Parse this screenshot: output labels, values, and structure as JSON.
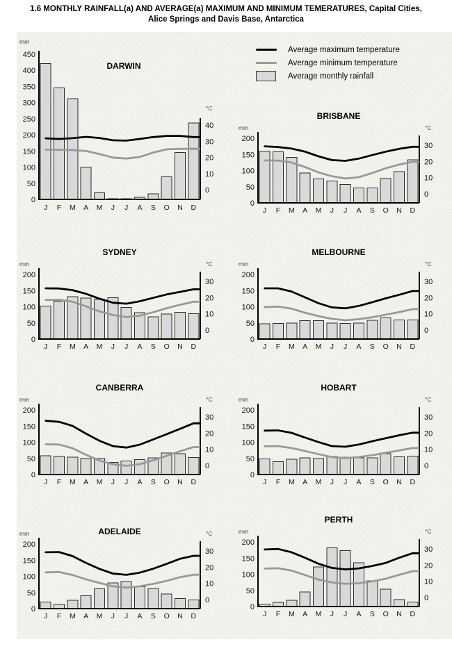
{
  "title": {
    "line1": "1.6 MONTHLY RAINFALL(a) AND AVERAGE(a) MAXIMUM AND MINIMUM TEMERATURES, Capital Cities,",
    "line2": "Alice Springs and Davis Base, Antarctica"
  },
  "legend": {
    "max_label": "Average maximum temperature",
    "min_label": "Average minimum temperature",
    "rain_label": "Average monthly rainfall"
  },
  "colors": {
    "max_line": "#000000",
    "min_line": "#999999",
    "bar_fill": "#d9d9d9",
    "bar_stroke": "#2b2b2b",
    "axis": "#000000",
    "tick_text": "#151515",
    "unit_text": "#444444",
    "panel_bg": "#f7f6f2"
  },
  "months": [
    "J",
    "F",
    "M",
    "A",
    "M",
    "J",
    "J",
    "A",
    "S",
    "O",
    "N",
    "D"
  ],
  "units": {
    "left": "mm",
    "right": "°C"
  },
  "chart_data": [
    {
      "id": "darwin",
      "type": "bar+line",
      "title": "DARWIN",
      "left_axis": {
        "unit": "mm",
        "min": 0,
        "max": 450,
        "ticks": [
          450,
          400,
          350,
          300,
          250,
          200,
          150,
          100,
          50,
          0
        ]
      },
      "right_axis": {
        "unit": "°C",
        "ticks": [
          40,
          30,
          20,
          10,
          0
        ],
        "zero_at_mm": 30
      },
      "rainfall_mm": [
        420,
        345,
        312,
        100,
        20,
        2,
        1,
        6,
        17,
        70,
        145,
        237
      ],
      "tmax_c": [
        31.8,
        31.4,
        31.9,
        32.7,
        32.0,
        30.6,
        30.4,
        31.4,
        32.6,
        33.3,
        33.3,
        32.6
      ],
      "tmin_c": [
        24.8,
        24.7,
        24.5,
        24.0,
        22.1,
        19.9,
        19.3,
        20.3,
        23.0,
        25.0,
        25.3,
        25.3
      ]
    },
    {
      "id": "brisbane",
      "type": "bar+line",
      "title": "BRISBANE",
      "left_axis": {
        "unit": "mm",
        "min": 0,
        "max": 200,
        "ticks": [
          200,
          150,
          100,
          50,
          0
        ]
      },
      "right_axis": {
        "unit": "°C",
        "ticks": [
          30,
          20,
          10,
          0
        ],
        "zero_at_mm": 28
      },
      "rainfall_mm": [
        160,
        158,
        141,
        93,
        74,
        68,
        57,
        46,
        46,
        75,
        97,
        133
      ],
      "tmax_c": [
        29.4,
        29.0,
        28.0,
        26.1,
        23.2,
        20.9,
        20.4,
        21.8,
        24.0,
        26.1,
        27.8,
        29.1
      ],
      "tmin_c": [
        20.7,
        20.6,
        19.4,
        16.6,
        13.3,
        10.9,
        9.5,
        10.3,
        12.9,
        15.8,
        18.1,
        19.8
      ]
    },
    {
      "id": "sydney",
      "type": "bar+line",
      "title": "SYDNEY",
      "left_axis": {
        "unit": "mm",
        "min": 0,
        "max": 200,
        "ticks": [
          200,
          150,
          100,
          50,
          0
        ]
      },
      "right_axis": {
        "unit": "°C",
        "ticks": [
          30,
          20,
          10,
          0
        ],
        "zero_at_mm": 28
      },
      "rainfall_mm": [
        102,
        117,
        131,
        127,
        123,
        128,
        98,
        82,
        69,
        77,
        83,
        78
      ],
      "tmax_c": [
        25.8,
        25.7,
        24.7,
        22.4,
        19.4,
        16.9,
        16.3,
        17.8,
        19.9,
        22.0,
        23.6,
        25.2
      ],
      "tmin_c": [
        18.6,
        18.7,
        17.5,
        14.7,
        11.5,
        9.3,
        8.0,
        8.9,
        11.0,
        13.5,
        15.6,
        17.5
      ]
    },
    {
      "id": "melbourne",
      "type": "bar+line",
      "title": "MELBOURNE",
      "left_axis": {
        "unit": "mm",
        "min": 0,
        "max": 200,
        "ticks": [
          200,
          150,
          100,
          50,
          0
        ]
      },
      "right_axis": {
        "unit": "°C",
        "ticks": [
          30,
          20,
          10,
          0
        ],
        "zero_at_mm": 28
      },
      "rainfall_mm": [
        47,
        48,
        50,
        57,
        57,
        49,
        48,
        50,
        58,
        66,
        59,
        59
      ],
      "tmax_c": [
        25.8,
        25.8,
        23.8,
        20.2,
        16.6,
        14.0,
        13.4,
        14.9,
        17.2,
        19.6,
        21.8,
        24.1
      ],
      "tmin_c": [
        14.2,
        14.5,
        13.2,
        10.7,
        8.6,
        6.9,
        6.0,
        6.7,
        7.9,
        9.5,
        11.1,
        12.9
      ]
    },
    {
      "id": "canberra",
      "type": "bar+line",
      "title": "CANBERRA",
      "left_axis": {
        "unit": "mm",
        "min": 0,
        "max": 200,
        "ticks": [
          200,
          150,
          100,
          50,
          0
        ]
      },
      "right_axis": {
        "unit": "°C",
        "ticks": [
          30,
          20,
          10,
          0
        ],
        "zero_at_mm": 28
      },
      "rainfall_mm": [
        58,
        56,
        54,
        49,
        49,
        38,
        42,
        46,
        52,
        67,
        64,
        53
      ],
      "tmax_c": [
        27.7,
        27.0,
        24.5,
        19.7,
        15.3,
        12.0,
        11.1,
        12.9,
        16.1,
        19.4,
        22.7,
        26.1
      ],
      "tmin_c": [
        13.1,
        13.0,
        10.7,
        6.6,
        3.1,
        0.8,
        -0.2,
        0.8,
        3.2,
        6.0,
        8.8,
        11.4
      ]
    },
    {
      "id": "hobart",
      "type": "bar+line",
      "title": "HOBART",
      "left_axis": {
        "unit": "mm",
        "min": 0,
        "max": 200,
        "ticks": [
          200,
          150,
          100,
          50,
          0
        ]
      },
      "right_axis": {
        "unit": "°C",
        "ticks": [
          30,
          20,
          10,
          0
        ],
        "zero_at_mm": 28
      },
      "rainfall_mm": [
        48,
        40,
        47,
        52,
        49,
        56,
        54,
        52,
        52,
        64,
        55,
        57
      ],
      "tmax_c": [
        21.6,
        21.7,
        20.2,
        17.3,
        14.5,
        12.0,
        11.6,
        13.0,
        15.0,
        16.9,
        18.7,
        20.3
      ],
      "tmin_c": [
        11.9,
        12.0,
        10.8,
        9.0,
        7.0,
        5.2,
        4.6,
        5.2,
        6.4,
        7.8,
        9.3,
        10.8
      ]
    },
    {
      "id": "adelaide",
      "type": "bar+line",
      "title": "ADELAIDE",
      "left_axis": {
        "unit": "mm",
        "min": 0,
        "max": 200,
        "ticks": [
          200,
          150,
          100,
          50,
          0
        ]
      },
      "right_axis": {
        "unit": "°C",
        "ticks": [
          30,
          20,
          10,
          0
        ],
        "zero_at_mm": 28
      },
      "rainfall_mm": [
        20,
        13,
        26,
        40,
        61,
        80,
        84,
        68,
        62,
        45,
        31,
        27
      ],
      "tmax_c": [
        29.3,
        29.4,
        26.9,
        22.7,
        19.0,
        16.1,
        15.3,
        16.7,
        19.1,
        22.1,
        25.3,
        27.1
      ],
      "tmin_c": [
        16.8,
        17.1,
        15.2,
        12.5,
        10.3,
        8.2,
        7.4,
        8.2,
        9.7,
        11.6,
        13.9,
        15.4
      ]
    },
    {
      "id": "perth",
      "type": "bar+line",
      "title": "PERTH",
      "left_axis": {
        "unit": "mm",
        "min": 0,
        "max": 200,
        "ticks": [
          200,
          150,
          100,
          50,
          0
        ]
      },
      "right_axis": {
        "unit": "°C",
        "ticks": [
          30,
          20,
          10,
          0
        ],
        "zero_at_mm": 28
      },
      "rainfall_mm": [
        8,
        13,
        19,
        45,
        123,
        182,
        173,
        136,
        80,
        54,
        21,
        14
      ],
      "tmax_c": [
        29.7,
        30.0,
        28.0,
        24.6,
        20.9,
        18.3,
        17.4,
        18.0,
        19.5,
        21.4,
        24.6,
        27.4
      ],
      "tmin_c": [
        17.9,
        18.1,
        16.7,
        13.9,
        11.1,
        9.3,
        8.4,
        8.8,
        10.0,
        11.6,
        14.0,
        16.3
      ]
    }
  ]
}
